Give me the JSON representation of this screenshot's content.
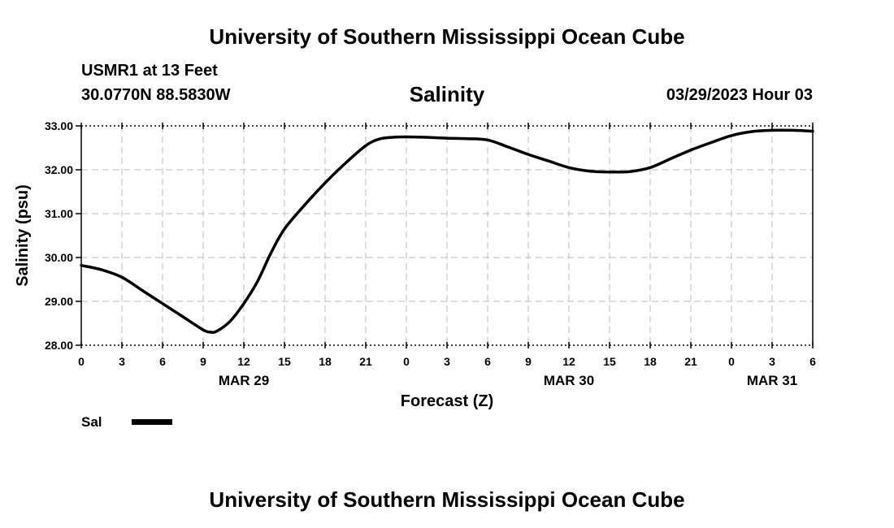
{
  "header": {
    "title": "University of Southern Mississippi Ocean Cube",
    "station": "USMR1 at 13 Feet",
    "coords": "30.0770N  88.5830W",
    "datetime": "03/29/2023 Hour 03"
  },
  "footer": {
    "title": "University of Southern Mississippi Ocean Cube"
  },
  "chart_data": {
    "type": "line",
    "title": "Salinity",
    "xlabel": "Forecast (Z)",
    "ylabel": "Salinity (psu)",
    "ylim": [
      28.0,
      33.0
    ],
    "yticks": [
      "33.00",
      "32.00",
      "31.00",
      "30.00",
      "29.00",
      "28.00"
    ],
    "xlim": [
      0,
      54
    ],
    "xtick_labels": [
      "0",
      "3",
      "6",
      "9",
      "12",
      "15",
      "18",
      "21",
      "0",
      "3",
      "6",
      "9",
      "12",
      "15",
      "18",
      "21",
      "0",
      "3",
      "6"
    ],
    "date_labels": [
      {
        "label": "MAR 29",
        "hour": 12
      },
      {
        "label": "MAR 30",
        "hour": 36
      },
      {
        "label": "MAR 31",
        "hour": 51
      }
    ],
    "grid": true,
    "line_color": "#000000",
    "series": [
      {
        "name": "Sal",
        "x": [
          0,
          1.5,
          3,
          4.5,
          6,
          7.5,
          9,
          9.5,
          10,
          11,
          12,
          13,
          14,
          15,
          16.5,
          18,
          19.5,
          21,
          22,
          23,
          24,
          25.5,
          27,
          28.5,
          30,
          31.5,
          33,
          34.5,
          36,
          37.5,
          39,
          40.5,
          42,
          43.5,
          45,
          46.5,
          48,
          49.5,
          51,
          52.5,
          54
        ],
        "values": [
          29.82,
          29.72,
          29.55,
          29.25,
          28.95,
          28.65,
          28.35,
          28.3,
          28.32,
          28.55,
          28.95,
          29.45,
          30.1,
          30.65,
          31.2,
          31.7,
          32.15,
          32.55,
          32.7,
          32.74,
          32.75,
          32.74,
          32.72,
          32.71,
          32.68,
          32.52,
          32.35,
          32.2,
          32.05,
          31.97,
          31.95,
          31.96,
          32.05,
          32.25,
          32.45,
          32.62,
          32.78,
          32.87,
          32.9,
          32.9,
          32.88
        ]
      }
    ]
  }
}
